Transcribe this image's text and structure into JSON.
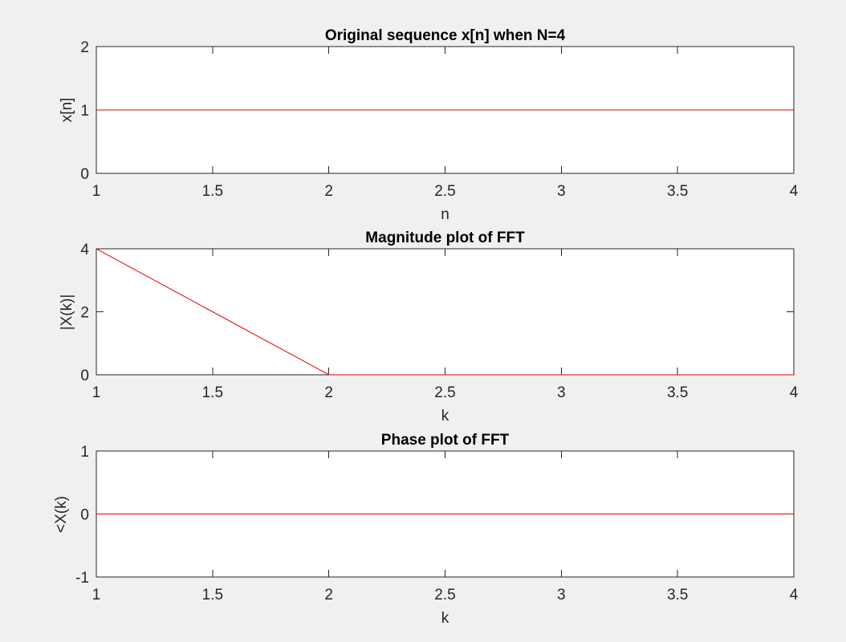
{
  "chart_data": [
    {
      "type": "line",
      "title": "Original sequence x[n] when N=4",
      "xlabel": "n",
      "ylabel": "x[n]",
      "xlim": [
        1,
        4
      ],
      "ylim": [
        0,
        2
      ],
      "xticks": [
        1,
        1.5,
        2,
        2.5,
        3,
        3.5,
        4
      ],
      "xticklabels": [
        "1",
        "1.5",
        "2",
        "2.5",
        "3",
        "3.5",
        "4"
      ],
      "yticks": [
        0,
        1,
        2
      ],
      "yticklabels": [
        "0",
        "1",
        "2"
      ],
      "grid": false,
      "series": [
        {
          "x": [
            1,
            2,
            3,
            4
          ],
          "y": [
            1,
            1,
            1,
            1
          ],
          "color": "#e0000a"
        }
      ]
    },
    {
      "type": "line",
      "title": "Magnitude plot of FFT",
      "xlabel": "k",
      "ylabel": "|X(k)|",
      "xlim": [
        1,
        4
      ],
      "ylim": [
        0,
        4
      ],
      "xticks": [
        1,
        1.5,
        2,
        2.5,
        3,
        3.5,
        4
      ],
      "xticklabels": [
        "1",
        "1.5",
        "2",
        "2.5",
        "3",
        "3.5",
        "4"
      ],
      "yticks": [
        0,
        2,
        4
      ],
      "yticklabels": [
        "0",
        "2",
        "4"
      ],
      "grid": false,
      "series": [
        {
          "x": [
            1,
            2,
            3,
            4
          ],
          "y": [
            4,
            0,
            0,
            0
          ],
          "color": "#e0000a"
        }
      ]
    },
    {
      "type": "line",
      "title": "Phase plot of FFT",
      "xlabel": "k",
      "ylabel": "<X(k)",
      "xlim": [
        1,
        4
      ],
      "ylim": [
        -1,
        1
      ],
      "xticks": [
        1,
        1.5,
        2,
        2.5,
        3,
        3.5,
        4
      ],
      "xticklabels": [
        "1",
        "1.5",
        "2",
        "2.5",
        "3",
        "3.5",
        "4"
      ],
      "yticks": [
        -1,
        0,
        1
      ],
      "yticklabels": [
        "-1",
        "0",
        "1"
      ],
      "grid": false,
      "series": [
        {
          "x": [
            1,
            2,
            3,
            4
          ],
          "y": [
            0,
            0,
            0,
            0
          ],
          "color": "#e0000a"
        }
      ]
    }
  ]
}
